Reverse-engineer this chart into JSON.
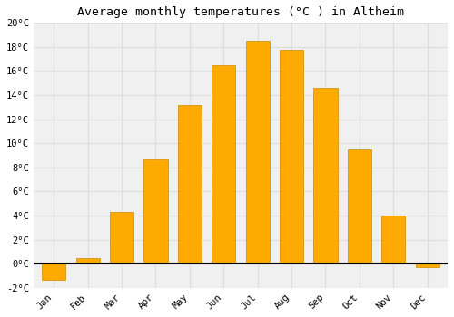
{
  "title": "Average monthly temperatures (°C ) in Altheim",
  "months": [
    "Jan",
    "Feb",
    "Mar",
    "Apr",
    "May",
    "Jun",
    "Jul",
    "Aug",
    "Sep",
    "Oct",
    "Nov",
    "Dec"
  ],
  "values": [
    -1.3,
    0.5,
    4.3,
    8.7,
    13.2,
    16.5,
    18.5,
    17.8,
    14.6,
    9.5,
    4.0,
    -0.3
  ],
  "bar_color": "#FFAA00",
  "bar_edge_color": "#CC8800",
  "ylim": [
    -2,
    20
  ],
  "yticks": [
    -2,
    0,
    2,
    4,
    6,
    8,
    10,
    12,
    14,
    16,
    18,
    20
  ],
  "bg_color": "#ffffff",
  "plot_bg_color": "#f0f0f0",
  "grid_color": "#dddddd",
  "title_fontsize": 9.5,
  "tick_fontsize": 7.5,
  "font_family": "monospace"
}
